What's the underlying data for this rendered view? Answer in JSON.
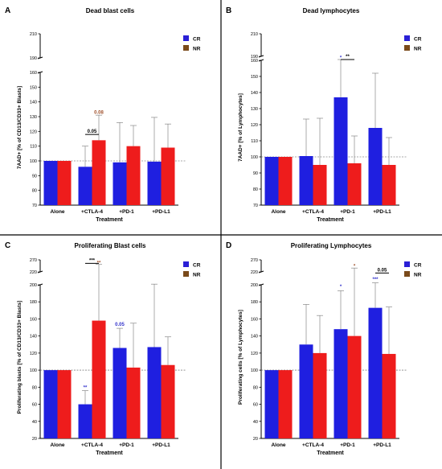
{
  "colors": {
    "CR": "#1f1fe0",
    "NR": "#ee1c1c",
    "CR_legend": "#2a1fd6",
    "NR_legend": "#7a4a1a",
    "sig_blue": "#3333cc",
    "sig_brown": "#a0522d",
    "sig_black": "#000000"
  },
  "chart_data": [
    {
      "letter": "A",
      "title": "Dead blast cells",
      "type": "bar",
      "ylabel": "7AAD+ [% of CD13/CD33+ Blasts]",
      "xlabel": "Treatment",
      "categories": [
        "Alone",
        "+CTLA-4",
        "+PD-1",
        "+PD-L1"
      ],
      "legend": [
        "CR",
        "NR"
      ],
      "y_low": {
        "range": [
          70,
          160
        ],
        "ticks": [
          "70",
          "80",
          "90",
          "100",
          "110",
          "120",
          "130",
          "140",
          "150",
          "160"
        ]
      },
      "y_high": {
        "range": [
          190,
          210
        ],
        "ticks": [
          "190",
          "210"
        ]
      },
      "reference_line": 100,
      "series": [
        {
          "name": "CR",
          "values": [
            100,
            96,
            99,
            99.5
          ],
          "errors": [
            0,
            14,
            27,
            30
          ]
        },
        {
          "name": "NR",
          "values": [
            100,
            114,
            110,
            109
          ],
          "errors": [
            0,
            17,
            14,
            16
          ]
        }
      ],
      "annotations": [
        {
          "text": "0.05",
          "cat": 1,
          "series": "both",
          "y": 119,
          "bracket": true,
          "color": "sig_black"
        },
        {
          "text": "0.08",
          "cat": 1,
          "series": "NR",
          "y": 132,
          "bracket": false,
          "color": "sig_brown"
        }
      ]
    },
    {
      "letter": "B",
      "title": "Dead lymphocytes",
      "type": "bar",
      "ylabel": "7AAD+ [% of Lymphocytes]",
      "xlabel": "Treatment",
      "categories": [
        "Alone",
        "+CTLA-4",
        "+PD-1",
        "+PD-L1"
      ],
      "legend": [
        "CR",
        "NR"
      ],
      "y_low": {
        "range": [
          70,
          160
        ],
        "ticks": [
          "70",
          "80",
          "90",
          "100",
          "110",
          "120",
          "130",
          "140",
          "150",
          "160"
        ]
      },
      "y_high": {
        "range": [
          190,
          210
        ],
        "ticks": [
          "190",
          "210"
        ]
      },
      "reference_line": 100,
      "series": [
        {
          "name": "CR",
          "values": [
            100,
            100.5,
            137,
            118
          ],
          "errors": [
            0,
            23,
            29,
            34
          ]
        },
        {
          "name": "NR",
          "values": [
            100,
            95,
            96,
            95
          ],
          "errors": [
            0,
            29,
            17,
            17
          ]
        }
      ],
      "annotations": [
        {
          "text": "*",
          "cat": 2,
          "series": "CR",
          "y": 168,
          "bracket": false,
          "color": "sig_blue"
        },
        {
          "text": "**",
          "cat": 2,
          "series": "both",
          "y": 178,
          "bracket": true,
          "color": "sig_black"
        }
      ]
    },
    {
      "letter": "C",
      "title": "Proliferating Blast cells",
      "type": "bar",
      "ylabel": "Proliferating blasts [% of CD13/CD33+ Blasts]",
      "xlabel": "Treatment",
      "categories": [
        "Alone",
        "+CTLA-4",
        "+PD-1",
        "+PD-L1"
      ],
      "legend": [
        "CR",
        "NR"
      ],
      "y_low": {
        "range": [
          20,
          200
        ],
        "ticks": [
          "20",
          "40",
          "60",
          "80",
          "100",
          "120",
          "140",
          "160",
          "180",
          "200"
        ]
      },
      "y_high": {
        "range": [
          220,
          270
        ],
        "ticks": [
          "220",
          "270"
        ]
      },
      "reference_line": 100,
      "series": [
        {
          "name": "CR",
          "values": [
            100,
            60,
            126,
            127
          ],
          "errors": [
            0,
            16,
            23,
            74
          ]
        },
        {
          "name": "NR",
          "values": [
            100,
            158,
            103,
            106
          ],
          "errors": [
            0,
            93,
            52,
            33
          ]
        }
      ],
      "annotations": [
        {
          "text": "**",
          "cat": 1,
          "series": "CR",
          "y": 78,
          "bracket": false,
          "color": "sig_blue"
        },
        {
          "text": "**",
          "cat": 1,
          "series": "NR",
          "y": 252,
          "bracket": false,
          "color": "sig_brown"
        },
        {
          "text": "***",
          "cat": 1,
          "series": "both",
          "y": 262,
          "bracket": true,
          "color": "sig_black"
        },
        {
          "text": "0.05",
          "cat": 2,
          "series": "CR",
          "y": 152,
          "bracket": false,
          "color": "sig_blue"
        }
      ]
    },
    {
      "letter": "D",
      "title": "Proliferating Lymphocytes",
      "type": "bar",
      "ylabel": "Proliferating cells [% of Lymphocytes]",
      "xlabel": "Treatment",
      "categories": [
        "Alone",
        "+CTLA-4",
        "+PD-1",
        "+PD-L1"
      ],
      "legend": [
        "CR",
        "NR"
      ],
      "y_low": {
        "range": [
          20,
          200
        ],
        "ticks": [
          "20",
          "40",
          "60",
          "80",
          "100",
          "120",
          "140",
          "160",
          "180",
          "200"
        ]
      },
      "y_high": {
        "range": [
          220,
          270
        ],
        "ticks": [
          "220",
          "270"
        ]
      },
      "reference_line": 100,
      "series": [
        {
          "name": "CR",
          "values": [
            100,
            130,
            148,
            173
          ],
          "errors": [
            0,
            47,
            45,
            30
          ]
        },
        {
          "name": "NR",
          "values": [
            100,
            120,
            140,
            119
          ],
          "errors": [
            0,
            44,
            96,
            55
          ]
        }
      ],
      "annotations": [
        {
          "text": "*",
          "cat": 2,
          "series": "CR",
          "y": 196,
          "bracket": false,
          "color": "sig_blue"
        },
        {
          "text": "*",
          "cat": 2,
          "series": "NR",
          "y": 238,
          "bracket": false,
          "color": "sig_brown"
        },
        {
          "text": "***",
          "cat": 3,
          "series": "CR",
          "y": 206,
          "bracket": false,
          "color": "sig_blue"
        },
        {
          "text": "0.05",
          "cat": 3,
          "series": "both",
          "y": 222,
          "bracket": true,
          "color": "sig_black"
        }
      ]
    }
  ]
}
